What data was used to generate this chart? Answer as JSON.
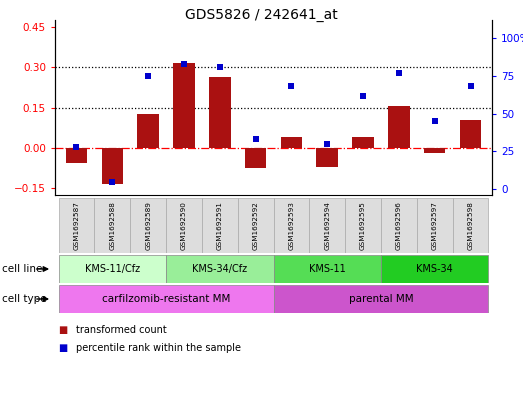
{
  "title": "GDS5826 / 242641_at",
  "samples": [
    "GSM1692587",
    "GSM1692588",
    "GSM1692589",
    "GSM1692590",
    "GSM1692591",
    "GSM1692592",
    "GSM1692593",
    "GSM1692594",
    "GSM1692595",
    "GSM1692596",
    "GSM1692597",
    "GSM1692598"
  ],
  "transformed_count": [
    -0.055,
    -0.135,
    0.125,
    0.315,
    0.265,
    -0.075,
    0.04,
    -0.07,
    0.04,
    0.155,
    -0.02,
    0.105
  ],
  "percentile_rank": [
    28,
    5,
    75,
    83,
    81,
    33,
    68,
    30,
    62,
    77,
    45,
    68
  ],
  "cell_line_groups": [
    {
      "label": "KMS-11/Cfz",
      "start": 0,
      "end": 2,
      "color": "#ccffcc"
    },
    {
      "label": "KMS-34/Cfz",
      "start": 3,
      "end": 5,
      "color": "#99ee99"
    },
    {
      "label": "KMS-11",
      "start": 6,
      "end": 8,
      "color": "#55dd55"
    },
    {
      "label": "KMS-34",
      "start": 9,
      "end": 11,
      "color": "#22cc22"
    }
  ],
  "cell_type_groups": [
    {
      "label": "carfilzomib-resistant MM",
      "start": 0,
      "end": 5,
      "color": "#ee77ee"
    },
    {
      "label": "parental MM",
      "start": 6,
      "end": 11,
      "color": "#cc55cc"
    }
  ],
  "ylim_left": [
    -0.175,
    0.475
  ],
  "ylim_right": [
    -3.9375,
    112.0625
  ],
  "yticks_left": [
    -0.15,
    0.0,
    0.15,
    0.3,
    0.45
  ],
  "yticks_right": [
    0,
    25,
    50,
    75,
    100
  ],
  "hlines": [
    0.15,
    0.3
  ],
  "bar_color": "#aa1111",
  "dot_color": "#0000cc",
  "legend_items": [
    {
      "label": "transformed count",
      "color": "#aa1111"
    },
    {
      "label": "percentile rank within the sample",
      "color": "#0000cc"
    }
  ]
}
